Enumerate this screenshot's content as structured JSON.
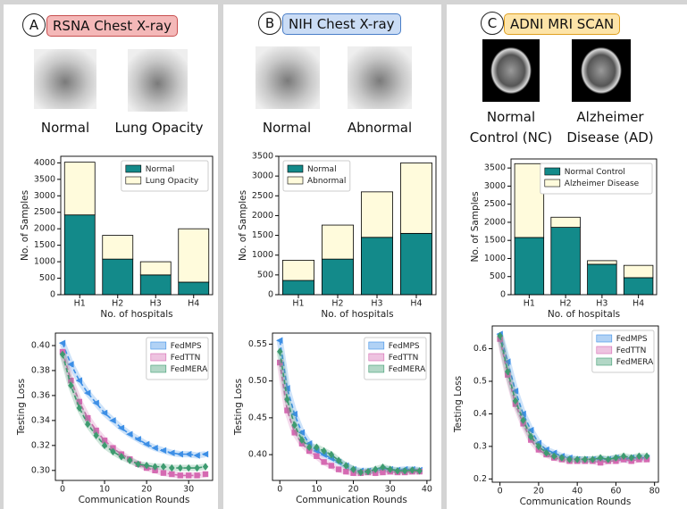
{
  "panels": [
    {
      "letter": "A",
      "title": "RSNA Chest X-ray",
      "image_labels": [
        "Normal",
        "Lung Opacity"
      ]
    },
    {
      "letter": "B",
      "title": "NIH Chest X-ray",
      "image_labels": [
        "Normal",
        "Abnormal"
      ]
    },
    {
      "letter": "C",
      "title": "ADNI MRI SCAN",
      "image_labels": [
        "Normal Control (NC)",
        "Alzheimer Disease (AD)"
      ]
    }
  ],
  "chart_data": [
    {
      "type": "bar",
      "stacked": true,
      "x_label": "No. of hospitals",
      "y_label": "No. of Samples",
      "categories": [
        "H1",
        "H2",
        "H3",
        "H4"
      ],
      "series": [
        {
          "name": "Normal",
          "color": "#138a8a",
          "values": [
            2420,
            1080,
            600,
            380
          ]
        },
        {
          "name": "Lung Opacity",
          "color": "#fffbdc",
          "values": [
            1600,
            720,
            400,
            1620
          ]
        }
      ],
      "ylim": [
        0,
        4200
      ],
      "yticks": [
        0,
        500,
        1000,
        1500,
        2000,
        2500,
        3000,
        3500,
        4000
      ],
      "legend": "upper right"
    },
    {
      "type": "bar",
      "stacked": true,
      "x_label": "No. of hospitals",
      "y_label": "No. of Samples",
      "categories": [
        "H1",
        "H2",
        "H3",
        "H4"
      ],
      "series": [
        {
          "name": "Normal",
          "color": "#138a8a",
          "values": [
            360,
            900,
            1450,
            1550
          ]
        },
        {
          "name": "Abnormal",
          "color": "#fffbdc",
          "values": [
            510,
            860,
            1150,
            1780
          ]
        }
      ],
      "ylim": [
        0,
        3500
      ],
      "yticks": [
        0,
        500,
        1000,
        1500,
        2000,
        2500,
        3000,
        3500
      ],
      "legend": "upper left"
    },
    {
      "type": "bar",
      "stacked": true,
      "x_label": "No. of hospitals",
      "y_label": "No. of Samples",
      "categories": [
        "H1",
        "H2",
        "H3",
        "H4"
      ],
      "series": [
        {
          "name": "Normal Control",
          "color": "#138a8a",
          "values": [
            1580,
            1860,
            840,
            470
          ]
        },
        {
          "name": "Alzheimer Disease",
          "color": "#fffbdc",
          "values": [
            2040,
            280,
            100,
            340
          ]
        }
      ],
      "ylim": [
        0,
        3750
      ],
      "yticks": [
        0,
        500,
        1000,
        1500,
        2000,
        2500,
        3000,
        3500
      ],
      "legend": "upper right"
    },
    {
      "type": "line",
      "x_label": "Communication Rounds",
      "y_label": "Testing Loss",
      "x": [
        0,
        2,
        4,
        6,
        8,
        10,
        12,
        14,
        16,
        18,
        20,
        22,
        24,
        26,
        28,
        30,
        32,
        34
      ],
      "series": [
        {
          "name": "FedMPS",
          "color": "#3d8fe6",
          "marker": "triangle",
          "values": [
            0.402,
            0.385,
            0.372,
            0.362,
            0.354,
            0.346,
            0.34,
            0.334,
            0.329,
            0.325,
            0.321,
            0.318,
            0.316,
            0.314,
            0.313,
            0.313,
            0.312,
            0.313
          ]
        },
        {
          "name": "FedTTN",
          "color": "#d56ab2",
          "marker": "square",
          "values": [
            0.395,
            0.372,
            0.355,
            0.342,
            0.332,
            0.324,
            0.318,
            0.313,
            0.309,
            0.305,
            0.302,
            0.3,
            0.298,
            0.297,
            0.296,
            0.296,
            0.296,
            0.297
          ]
        },
        {
          "name": "FedMERA",
          "color": "#3e9b70",
          "marker": "diamond",
          "values": [
            0.393,
            0.368,
            0.35,
            0.337,
            0.328,
            0.32,
            0.315,
            0.311,
            0.308,
            0.305,
            0.304,
            0.303,
            0.303,
            0.302,
            0.302,
            0.302,
            0.302,
            0.303
          ]
        }
      ],
      "xlim": [
        -1.7,
        35.7
      ],
      "xticks": [
        0,
        10,
        20,
        30
      ],
      "ylim": [
        0.292,
        0.41
      ],
      "yticks": [
        {
          "value": 0.3,
          "label": "0.30"
        },
        0.32,
        0.34,
        0.36,
        0.38,
        {
          "value": 0.4,
          "label": "0.40"
        }
      ],
      "legend": "upper right"
    },
    {
      "type": "line",
      "x_label": "Communication Rounds",
      "y_label": "Testing Loss",
      "x": [
        0,
        2,
        4,
        6,
        8,
        10,
        12,
        14,
        16,
        18,
        20,
        22,
        24,
        26,
        28,
        30,
        32,
        34,
        36,
        38
      ],
      "series": [
        {
          "name": "FedMPS",
          "color": "#3d8fe6",
          "marker": "triangle",
          "values": [
            0.555,
            0.49,
            0.455,
            0.43,
            0.415,
            0.405,
            0.4,
            0.395,
            0.39,
            0.385,
            0.38,
            0.378,
            0.378,
            0.378,
            0.38,
            0.38,
            0.379,
            0.38,
            0.38,
            0.379
          ]
        },
        {
          "name": "FedTTN",
          "color": "#d56ab2",
          "marker": "square",
          "values": [
            0.525,
            0.46,
            0.43,
            0.415,
            0.405,
            0.398,
            0.39,
            0.385,
            0.38,
            0.377,
            0.375,
            0.375,
            0.376,
            0.375,
            0.376,
            0.377,
            0.376,
            0.376,
            0.377,
            0.377
          ]
        },
        {
          "name": "FedMERA",
          "color": "#3e9b70",
          "marker": "diamond",
          "values": [
            0.54,
            0.475,
            0.44,
            0.42,
            0.41,
            0.41,
            0.405,
            0.4,
            0.392,
            0.385,
            0.38,
            0.376,
            0.377,
            0.38,
            0.383,
            0.38,
            0.378,
            0.378,
            0.379,
            0.378
          ]
        }
      ],
      "xlim": [
        -2,
        41
      ],
      "xticks": [
        0,
        10,
        20,
        30,
        40
      ],
      "ylim": [
        0.365,
        0.565
      ],
      "yticks": [
        {
          "value": 0.4,
          "label": "0.40"
        },
        0.45,
        {
          "value": 0.5,
          "label": "0.50"
        },
        0.55
      ],
      "legend": "upper right"
    },
    {
      "type": "line",
      "x_label": "Communication Rounds",
      "y_label": "Testing Loss",
      "x": [
        0,
        4,
        8,
        12,
        16,
        20,
        24,
        28,
        32,
        36,
        40,
        44,
        48,
        52,
        56,
        60,
        64,
        68,
        72,
        76
      ],
      "series": [
        {
          "name": "FedMPS",
          "color": "#3d8fe6",
          "marker": "triangle",
          "values": [
            0.645,
            0.56,
            0.47,
            0.4,
            0.35,
            0.31,
            0.29,
            0.28,
            0.27,
            0.265,
            0.26,
            0.26,
            0.26,
            0.26,
            0.26,
            0.265,
            0.26,
            0.265,
            0.265,
            0.265
          ]
        },
        {
          "name": "FedTTN",
          "color": "#d56ab2",
          "marker": "square",
          "values": [
            0.63,
            0.52,
            0.43,
            0.37,
            0.32,
            0.29,
            0.275,
            0.265,
            0.26,
            0.255,
            0.255,
            0.255,
            0.255,
            0.25,
            0.255,
            0.255,
            0.26,
            0.255,
            0.26,
            0.26
          ]
        },
        {
          "name": "FedMERA",
          "color": "#3e9b70",
          "marker": "diamond",
          "values": [
            0.64,
            0.53,
            0.44,
            0.38,
            0.33,
            0.3,
            0.28,
            0.27,
            0.265,
            0.26,
            0.26,
            0.26,
            0.26,
            0.265,
            0.26,
            0.265,
            0.27,
            0.265,
            0.27,
            0.27
          ]
        }
      ],
      "xlim": [
        -4,
        82
      ],
      "xticks": [
        0,
        20,
        40,
        60,
        80
      ],
      "ylim": [
        0.19,
        0.67
      ],
      "yticks": [
        0.2,
        0.3,
        0.4,
        0.5,
        0.6
      ],
      "legend": "upper right"
    }
  ]
}
